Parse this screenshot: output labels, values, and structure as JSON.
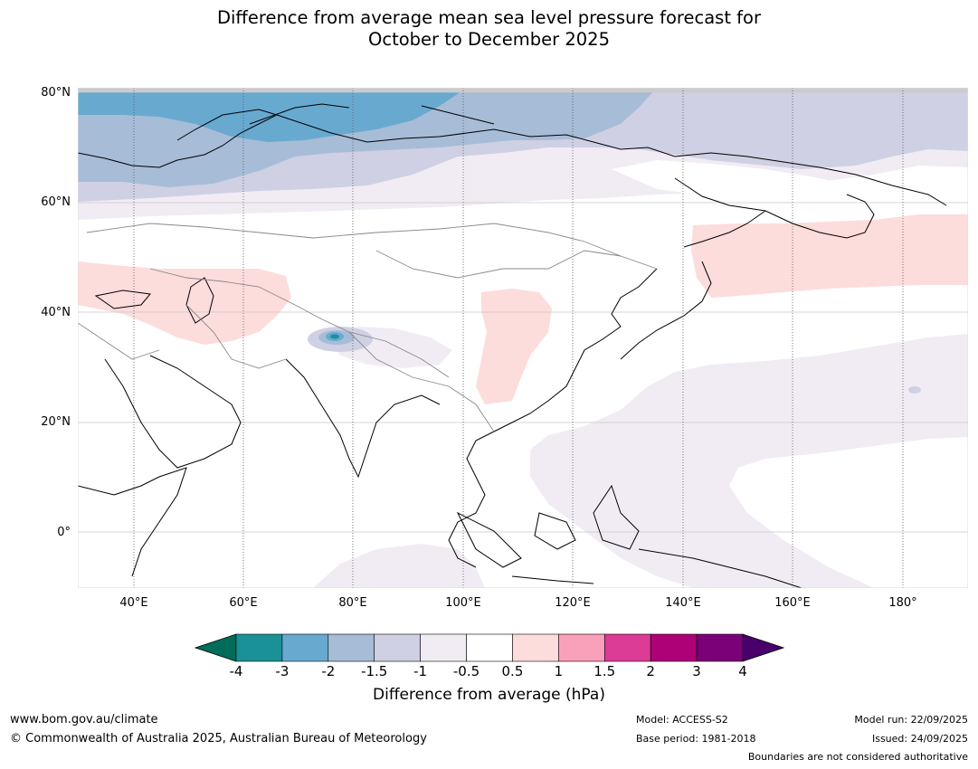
{
  "title_line1": "Difference from average mean sea level pressure forecast for",
  "title_line2": "October to December 2025",
  "lat_labels": [
    "80°N",
    "60°N",
    "40°N",
    "20°N",
    "0°"
  ],
  "lon_labels": [
    "40°E",
    "60°E",
    "80°E",
    "100°E",
    "120°E",
    "140°E",
    "160°E",
    "180°"
  ],
  "colorbar": {
    "ticks": [
      "-4",
      "-3",
      "-2",
      "-1.5",
      "-1",
      "-0.5",
      "0.5",
      "1",
      "1.5",
      "2",
      "3",
      "4"
    ],
    "colors": [
      "#1a9196",
      "#68a9d0",
      "#a7bcd7",
      "#cfd0e3",
      "#f1ecf4",
      "#ffffff",
      "#fddcdc",
      "#f9a1bb",
      "#dc3b96",
      "#ad0178",
      "#7b0179"
    ],
    "extend_low_color": "#016c59",
    "extend_high_color": "#49006a",
    "label": "Difference from average (hPa)"
  },
  "footer": {
    "website": "www.bom.gov.au/climate",
    "copyright": "© Commonwealth of Australia 2025, Australian Bureau of Meteorology",
    "model": "Model: ACCESS-S2",
    "base_period": "Base period: 1981-2018",
    "model_run": "Model run: 22/09/2025",
    "issued": "Issued: 24/09/2025",
    "disclaimer": "Boundaries are not considered authoritative"
  }
}
